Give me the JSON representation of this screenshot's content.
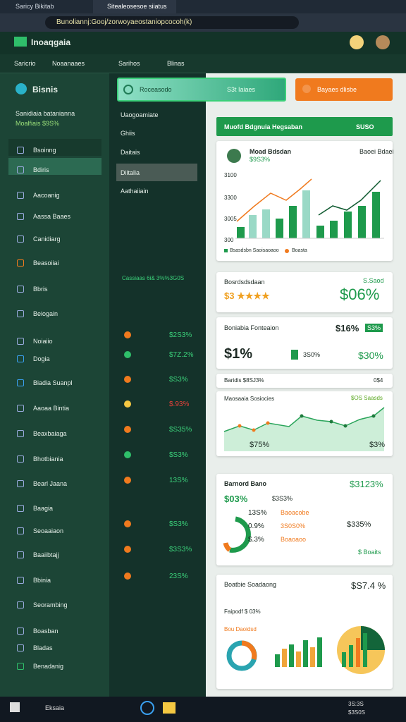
{
  "browser": {
    "tabs": [
      "Saricy Bikitab",
      "Sitealeosesoe siiatus"
    ],
    "url": "Bunoliannj:Gooj/zorwoyaeostaniopcocoh(k)"
  },
  "header": {
    "logo": "Inoaqgaia"
  },
  "nav": [
    "Saricrio",
    "Noaanaaes",
    "Sarihos",
    "Blinas"
  ],
  "sidebar": {
    "title": "Bisnis",
    "summary": "Sanidiaia batanianna",
    "summary_value": "Moalfiais $9S%",
    "items": [
      "Bsoinng",
      "Bdiris",
      "Aacoanig",
      "Aassa Baaes",
      "Canidiarg",
      "Beasoiiai",
      "Bbris",
      "Beiogain",
      "Noiaiio",
      "Dogia",
      "Biadia Suanpl",
      "Aaoaa Bintia",
      "Beaxbaiaga",
      "Bhotbiania",
      "Bearl Jaana",
      "Baagia",
      "Seoaaiaon",
      "Baaiibtajj",
      "Bbinia",
      "Seorambing",
      "Boasban",
      "Bladas",
      "Benadanig"
    ]
  },
  "middle": {
    "buttons": [
      "Roceasodo",
      "S3t Iaiaes",
      "Bayaes dlisbe"
    ],
    "menu": [
      "Uaogoamiate",
      "Ghiis",
      "Daitais",
      "Diitalia",
      "Aathaiiain"
    ],
    "caption": "Cassiaas 6i& 3%%3G0S",
    "rows": [
      "$2S3%",
      "$7Z.2%",
      "$S3%",
      "$.93%",
      "$S35%",
      "$S3%",
      "13S%",
      "$S3%",
      "$3S3%",
      "23S%"
    ]
  },
  "cards": {
    "banner": {
      "title": "Muofd Bdgnuia Hegsaban",
      "value": "SUSO"
    },
    "main": {
      "title": "Moad Bdsdan",
      "right": "Baoei Bdaei",
      "sub": "$9S3%",
      "axis": [
        "3100",
        "3300",
        "3005",
        "300"
      ],
      "legend": [
        "Bsasdsbn Saoisaoaoo",
        "Boasta"
      ]
    },
    "rating": {
      "title": "Bosrdsdsdaan",
      "right": "S.Saod",
      "stars": "$3 ★★★★",
      "value": "$06%"
    },
    "position": {
      "title": "Boniabia Fonteaion",
      "right": "$16%",
      "badge": "S3%",
      "value": "$1%",
      "mid": "3S0%",
      "end": "$30%"
    },
    "strip": {
      "left": "Baridis $8SJ3%",
      "right": "0$4"
    },
    "trend": {
      "title": "Maosaaia Sosiocies",
      "right": "$OS Saasds",
      "low": "$75%",
      "end": "$3%"
    },
    "balance": {
      "title": "Barnord Bano",
      "right": "$3123%",
      "value": "$03%",
      "tag": "$3S3%",
      "rows": [
        [
          "13S%",
          "Baoacobe"
        ],
        [
          "0.9%",
          "3S0S0%"
        ],
        [
          "$.3%",
          "Boaoaoo"
        ]
      ],
      "side": "$335%",
      "foot": "$ Boaits"
    },
    "summary": {
      "title": "Boatbie Soadaong",
      "right": "$S7.4 %",
      "sub": "Faipodf $ 03%",
      "label": "Bou Daoidsd"
    }
  },
  "taskbar": {
    "search": "Eksaia",
    "time": "3S:3S",
    "date": "$3S0S"
  }
}
